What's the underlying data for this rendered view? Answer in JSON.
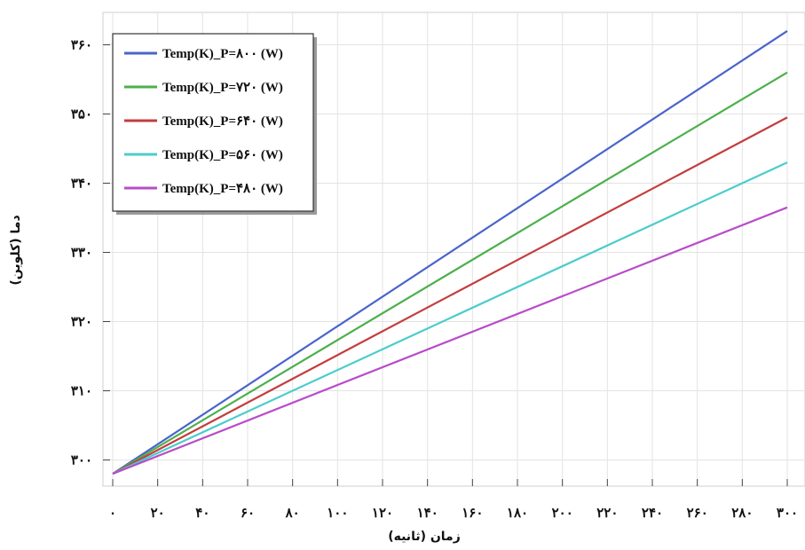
{
  "chart_data": {
    "type": "line",
    "xlabel": "زمان (ثانیه)",
    "ylabel": "دما (کلوین)",
    "x_ticks": [
      {
        "value": 0,
        "label": "۰"
      },
      {
        "value": 20,
        "label": "۲۰"
      },
      {
        "value": 40,
        "label": "۴۰"
      },
      {
        "value": 60,
        "label": "۶۰"
      },
      {
        "value": 80,
        "label": "۸۰"
      },
      {
        "value": 100,
        "label": "۱۰۰"
      },
      {
        "value": 120,
        "label": "۱۲۰"
      },
      {
        "value": 140,
        "label": "۱۴۰"
      },
      {
        "value": 160,
        "label": "۱۶۰"
      },
      {
        "value": 180,
        "label": "۱۸۰"
      },
      {
        "value": 200,
        "label": "۲۰۰"
      },
      {
        "value": 220,
        "label": "۲۲۰"
      },
      {
        "value": 240,
        "label": "۲۴۰"
      },
      {
        "value": 260,
        "label": "۲۶۰"
      },
      {
        "value": 280,
        "label": "۲۸۰"
      },
      {
        "value": 300,
        "label": "۳۰۰"
      }
    ],
    "y_ticks": [
      {
        "value": 300,
        "label": "۳۰۰"
      },
      {
        "value": 310,
        "label": "۳۱۰"
      },
      {
        "value": 320,
        "label": "۳۲۰"
      },
      {
        "value": 330,
        "label": "۳۳۰"
      },
      {
        "value": 340,
        "label": "۳۴۰"
      },
      {
        "value": 350,
        "label": "۳۵۰"
      },
      {
        "value": 360,
        "label": "۳۶۰"
      }
    ],
    "grid": true,
    "legend_position": "top-left",
    "series": [
      {
        "name": "Temp(K)_P=۸۰۰ (W)",
        "color": "#4a64cc",
        "x": [
          0,
          300
        ],
        "y": [
          298,
          362
        ]
      },
      {
        "name": "Temp(K)_P=۷۲۰ (W)",
        "color": "#4cb04c",
        "x": [
          0,
          300
        ],
        "y": [
          298,
          356
        ]
      },
      {
        "name": "Temp(K)_P=۶۴۰ (W)",
        "color": "#c43c3c",
        "x": [
          0,
          300
        ],
        "y": [
          298,
          349.5
        ]
      },
      {
        "name": "Temp(K)_P=۵۶۰ (W)",
        "color": "#4ccccc",
        "x": [
          0,
          300
        ],
        "y": [
          298,
          343
        ]
      },
      {
        "name": "Temp(K)_P=۴۸۰ (W)",
        "color": "#b84cc8",
        "x": [
          0,
          300
        ],
        "y": [
          298,
          336.5
        ]
      }
    ]
  }
}
